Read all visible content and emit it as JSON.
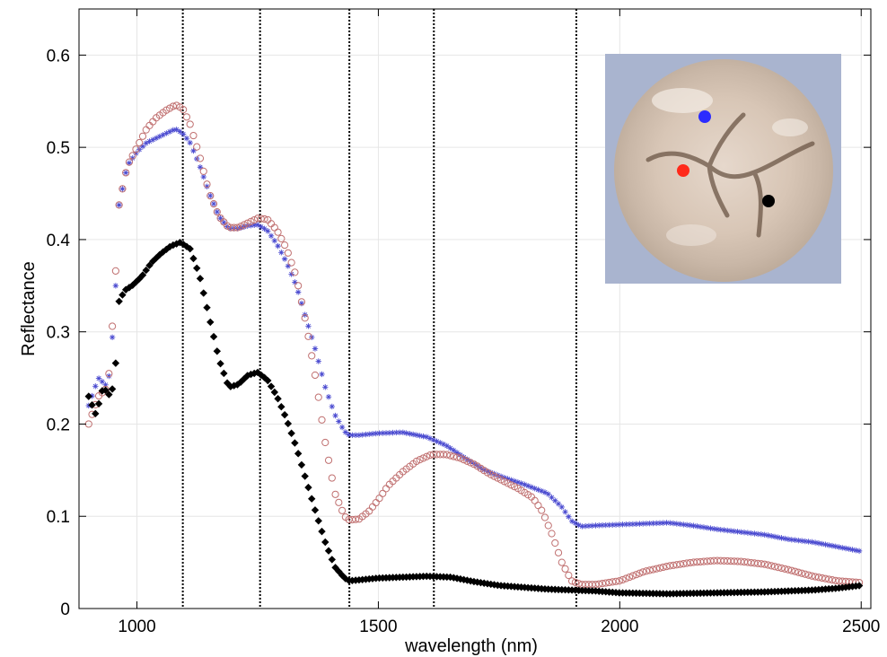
{
  "chart_data": {
    "type": "scatter",
    "xlabel": "wavelength (nm)",
    "ylabel": "Reflectance",
    "xlim": [
      880,
      2520
    ],
    "ylim": [
      0,
      0.65
    ],
    "xticks": [
      1000,
      1500,
      2000,
      2500
    ],
    "xtick_labels": [
      "1000",
      "1500",
      "2000",
      "2500"
    ],
    "yticks": [
      0,
      0.1,
      0.2,
      0.3,
      0.4,
      0.5,
      0.6
    ],
    "ytick_labels": [
      "0",
      "0.1",
      "0.2",
      "0.3",
      "0.4",
      "0.5",
      "0.6"
    ],
    "grid": true,
    "vertical_lines": [
      1095,
      1255,
      1440,
      1615,
      1910
    ],
    "series": [
      {
        "marker": "star",
        "color": "#4a4ad0",
        "x": [
          900,
          920,
          940,
          955,
          960,
          980,
          1000,
          1020,
          1040,
          1060,
          1080,
          1095,
          1110,
          1130,
          1150,
          1170,
          1190,
          1210,
          1230,
          1250,
          1270,
          1290,
          1310,
          1330,
          1350,
          1370,
          1390,
          1410,
          1430,
          1440,
          1460,
          1500,
          1550,
          1600,
          1640,
          1680,
          1720,
          1760,
          1800,
          1850,
          1880,
          1900,
          1920,
          1950,
          2000,
          2050,
          2100,
          2150,
          2200,
          2250,
          2300,
          2350,
          2400,
          2450,
          2500
        ],
        "y": [
          0.22,
          0.25,
          0.24,
          0.33,
          0.43,
          0.48,
          0.495,
          0.505,
          0.51,
          0.515,
          0.52,
          0.515,
          0.505,
          0.48,
          0.45,
          0.425,
          0.412,
          0.412,
          0.415,
          0.416,
          0.41,
          0.395,
          0.375,
          0.35,
          0.315,
          0.28,
          0.24,
          0.21,
          0.192,
          0.188,
          0.188,
          0.19,
          0.191,
          0.186,
          0.177,
          0.163,
          0.15,
          0.142,
          0.135,
          0.125,
          0.11,
          0.095,
          0.089,
          0.09,
          0.091,
          0.092,
          0.093,
          0.09,
          0.086,
          0.083,
          0.08,
          0.075,
          0.072,
          0.067,
          0.062
        ]
      },
      {
        "marker": "circle",
        "color": "#c07070",
        "x": [
          900,
          920,
          940,
          955,
          960,
          980,
          1000,
          1020,
          1040,
          1060,
          1080,
          1095,
          1110,
          1130,
          1150,
          1170,
          1190,
          1210,
          1230,
          1250,
          1270,
          1290,
          1310,
          1330,
          1350,
          1370,
          1390,
          1410,
          1430,
          1440,
          1460,
          1480,
          1500,
          1520,
          1550,
          1580,
          1610,
          1640,
          1670,
          1700,
          1730,
          1760,
          1790,
          1820,
          1840,
          1860,
          1880,
          1900,
          1920,
          1950,
          2000,
          2050,
          2100,
          2150,
          2200,
          2250,
          2300,
          2350,
          2400,
          2450,
          2500
        ],
        "y": [
          0.2,
          0.23,
          0.24,
          0.35,
          0.43,
          0.48,
          0.5,
          0.52,
          0.532,
          0.54,
          0.546,
          0.542,
          0.525,
          0.49,
          0.45,
          0.425,
          0.413,
          0.413,
          0.418,
          0.423,
          0.422,
          0.41,
          0.39,
          0.36,
          0.31,
          0.25,
          0.18,
          0.125,
          0.1,
          0.096,
          0.097,
          0.105,
          0.118,
          0.133,
          0.148,
          0.16,
          0.167,
          0.167,
          0.163,
          0.156,
          0.146,
          0.138,
          0.13,
          0.12,
          0.105,
          0.08,
          0.05,
          0.03,
          0.026,
          0.026,
          0.03,
          0.04,
          0.046,
          0.05,
          0.052,
          0.051,
          0.048,
          0.042,
          0.035,
          0.03,
          0.028
        ]
      },
      {
        "marker": "diamond",
        "color": "#000000",
        "x": [
          900,
          915,
          930,
          945,
          955,
          960,
          975,
          990,
          1010,
          1030,
          1050,
          1070,
          1090,
          1110,
          1130,
          1150,
          1170,
          1190,
          1210,
          1230,
          1250,
          1270,
          1290,
          1310,
          1330,
          1350,
          1370,
          1390,
          1410,
          1430,
          1440,
          1460,
          1500,
          1550,
          1600,
          1650,
          1700,
          1750,
          1800,
          1850,
          1900,
          1950,
          2000,
          2100,
          2200,
          2300,
          2400,
          2450,
          2500
        ],
        "y": [
          0.23,
          0.21,
          0.24,
          0.23,
          0.25,
          0.33,
          0.345,
          0.35,
          0.36,
          0.375,
          0.385,
          0.393,
          0.397,
          0.39,
          0.36,
          0.315,
          0.27,
          0.24,
          0.243,
          0.253,
          0.256,
          0.248,
          0.23,
          0.205,
          0.175,
          0.14,
          0.105,
          0.072,
          0.045,
          0.033,
          0.03,
          0.031,
          0.033,
          0.034,
          0.035,
          0.034,
          0.029,
          0.025,
          0.023,
          0.021,
          0.02,
          0.019,
          0.017,
          0.016,
          0.017,
          0.018,
          0.02,
          0.022,
          0.025
        ]
      }
    ],
    "inset": {
      "markers": [
        {
          "color": "#2b2bff"
        },
        {
          "color": "#ff2a1a"
        },
        {
          "color": "#000000"
        }
      ]
    }
  }
}
